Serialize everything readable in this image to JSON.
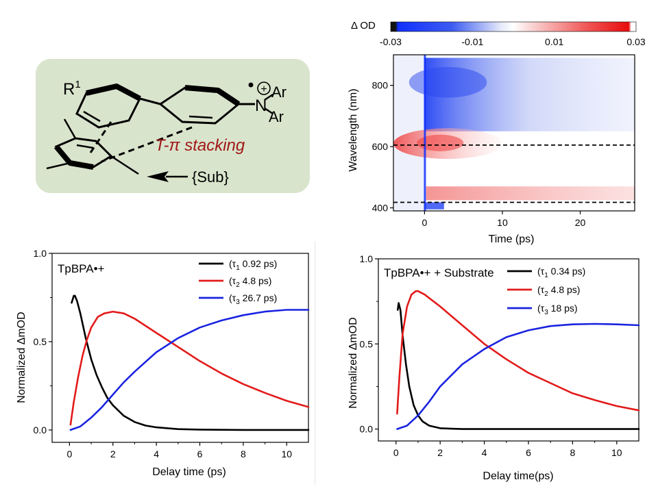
{
  "scheme": {
    "r1_label": "R",
    "r1_sup": "1",
    "n_label": "N",
    "ar_top": "Ar",
    "ar_bottom": "Ar",
    "plus_label": "+",
    "stacking_label": "T-π stacking",
    "sub_label": "{Sub}",
    "box_color": "#d9e4cc",
    "stacking_color": "#a01818"
  },
  "chart_data": [
    {
      "type": "heatmap",
      "title": "",
      "colorbar_label": "Δ OD",
      "colorbar_ticks": [
        "-0.03",
        "-0.01",
        "0.01",
        "0.03"
      ],
      "colorbar_range": [
        -0.03,
        0.03
      ],
      "xlabel": "Time (ps)",
      "ylabel": "Wavelength (nm)",
      "xlim": [
        -4,
        27
      ],
      "ylim": [
        390,
        900
      ],
      "xticks": [
        0,
        10,
        20
      ],
      "yticks": [
        400,
        600,
        800
      ],
      "dashed_lines_nm": [
        605,
        418
      ],
      "colors": {
        "negative": "#1e3cff",
        "positive": "#ee2020",
        "zero": "#ffffff"
      }
    },
    {
      "type": "line",
      "annotation": "TpBPA•+",
      "xlabel": "Delay time (ps)",
      "ylabel": "Normalized ΔmOD",
      "xlim": [
        -0.8,
        11
      ],
      "ylim": [
        -0.07,
        1.0
      ],
      "xticks": [
        0,
        2,
        4,
        6,
        8,
        10
      ],
      "yticks": [
        0.0,
        0.5,
        1.0
      ],
      "ytick_labels": [
        "0.0",
        "0.5",
        "1.0"
      ],
      "legend_position": "top-right",
      "series": [
        {
          "name": "(τ1 0.92 ps)",
          "color": "#000000",
          "x": [
            0.1,
            0.2,
            0.25,
            0.35,
            0.5,
            0.75,
            1.0,
            1.25,
            1.5,
            1.75,
            2.0,
            2.5,
            3.0,
            3.5,
            4.0,
            5.0,
            6.0,
            8.0,
            11.0
          ],
          "y": [
            0.72,
            0.76,
            0.76,
            0.73,
            0.66,
            0.52,
            0.4,
            0.31,
            0.24,
            0.18,
            0.14,
            0.08,
            0.045,
            0.025,
            0.015,
            0.005,
            0.002,
            0.0,
            0.0
          ]
        },
        {
          "name": "(τ2 4.8 ps)",
          "color": "#e31a1a",
          "x": [
            0.05,
            0.2,
            0.4,
            0.6,
            0.8,
            1.0,
            1.3,
            1.6,
            2.0,
            2.5,
            3.0,
            4.0,
            5.0,
            6.0,
            7.0,
            8.0,
            9.0,
            10.0,
            11.0
          ],
          "y": [
            0.03,
            0.16,
            0.3,
            0.42,
            0.51,
            0.58,
            0.64,
            0.66,
            0.67,
            0.66,
            0.63,
            0.55,
            0.47,
            0.39,
            0.32,
            0.26,
            0.21,
            0.165,
            0.13
          ]
        },
        {
          "name": "(τ3 26.7 ps)",
          "color": "#1a24e0",
          "x": [
            0.05,
            0.5,
            1.0,
            1.5,
            2.0,
            2.5,
            3.0,
            4.0,
            5.0,
            6.0,
            7.0,
            8.0,
            9.0,
            10.0,
            11.0
          ],
          "y": [
            0.0,
            0.02,
            0.07,
            0.13,
            0.2,
            0.27,
            0.33,
            0.44,
            0.52,
            0.58,
            0.62,
            0.65,
            0.67,
            0.68,
            0.68
          ]
        }
      ]
    },
    {
      "type": "line",
      "annotation": "TpBPA•+ + Substrate",
      "xlabel": "Delay time(ps)",
      "ylabel": "Normalized ΔmOD",
      "xlim": [
        -0.8,
        11
      ],
      "ylim": [
        -0.07,
        1.0
      ],
      "xticks": [
        0,
        2,
        4,
        6,
        8,
        10
      ],
      "yticks": [
        0.0,
        0.5,
        1.0
      ],
      "ytick_labels": [
        "0.0",
        "0.5",
        "1.0"
      ],
      "legend_position": "top-right",
      "series": [
        {
          "name": "(τ1 0.34 ps)",
          "color": "#000000",
          "x": [
            0.08,
            0.12,
            0.2,
            0.3,
            0.45,
            0.6,
            0.8,
            1.0,
            1.2,
            1.5,
            2.0,
            2.5,
            3.0,
            4.0,
            11.0
          ],
          "y": [
            0.7,
            0.74,
            0.7,
            0.55,
            0.38,
            0.25,
            0.14,
            0.08,
            0.045,
            0.02,
            0.005,
            0.002,
            0.0,
            0.0,
            0.0
          ]
        },
        {
          "name": "(τ2 4.8 ps)",
          "color": "#e31a1a",
          "x": [
            0.05,
            0.15,
            0.3,
            0.5,
            0.7,
            0.9,
            1.0,
            1.3,
            1.6,
            2.0,
            3.0,
            4.0,
            5.0,
            6.0,
            7.0,
            8.0,
            9.0,
            10.0,
            11.0
          ],
          "y": [
            0.09,
            0.3,
            0.56,
            0.72,
            0.79,
            0.81,
            0.81,
            0.79,
            0.76,
            0.72,
            0.61,
            0.5,
            0.41,
            0.33,
            0.27,
            0.21,
            0.17,
            0.135,
            0.11
          ]
        },
        {
          "name": "(τ3 18 ps)",
          "color": "#1a24e0",
          "x": [
            0.05,
            0.5,
            1.0,
            1.5,
            2.0,
            3.0,
            4.0,
            5.0,
            6.0,
            7.0,
            8.0,
            9.0,
            10.0,
            11.0
          ],
          "y": [
            0.0,
            0.02,
            0.08,
            0.16,
            0.25,
            0.38,
            0.47,
            0.54,
            0.58,
            0.605,
            0.615,
            0.618,
            0.615,
            0.61
          ]
        }
      ]
    }
  ]
}
